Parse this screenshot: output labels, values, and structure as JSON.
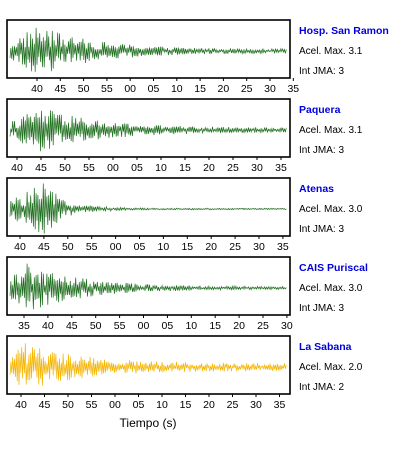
{
  "chart_data": [
    {
      "type": "line",
      "station": "Hosp. San Ramon",
      "lines": [
        "Acel. Max. 3.1",
        "Int JMA: 3"
      ],
      "color": "#1e6e1e",
      "ticks": [
        "40",
        "45",
        "50",
        "55",
        "00",
        "05",
        "10",
        "15",
        "20",
        "25",
        "30",
        "35"
      ],
      "amplitude_envelope": {
        "peak_time": "42",
        "peak_relative": 1.0,
        "decay": "slow",
        "tail_relative": 0.08
      }
    },
    {
      "type": "line",
      "station": "Paquera",
      "lines": [
        "Acel. Max. 3.1",
        "Int JMA: 3"
      ],
      "color": "#1e6e1e",
      "ticks": [
        "40",
        "45",
        "50",
        "55",
        "00",
        "05",
        "10",
        "15",
        "20",
        "25",
        "30",
        "35"
      ],
      "amplitude_envelope": {
        "peak_time": "45",
        "peak_relative": 0.9,
        "decay": "slow",
        "tail_relative": 0.1
      }
    },
    {
      "type": "line",
      "station": "Atenas",
      "lines": [
        "Acel. Max. 3.0",
        "Int JMA: 3"
      ],
      "color": "#1e6e1e",
      "ticks": [
        "40",
        "45",
        "50",
        "55",
        "00",
        "05",
        "10",
        "15",
        "20",
        "25",
        "30",
        "35"
      ],
      "amplitude_envelope": {
        "peak_time": "45",
        "peak_relative": 1.0,
        "decay": "fast",
        "tail_relative": 0.03
      }
    },
    {
      "type": "line",
      "station": "CAIS Puriscal",
      "lines": [
        "Acel. Max. 3.0",
        "Int JMA: 3"
      ],
      "color": "#1e6e1e",
      "ticks": [
        "35",
        "40",
        "45",
        "50",
        "55",
        "00",
        "05",
        "10",
        "15",
        "20",
        "25",
        "30"
      ],
      "amplitude_envelope": {
        "peak_time": "37",
        "peak_relative": 1.0,
        "decay": "slow",
        "tail_relative": 0.05
      }
    },
    {
      "type": "line",
      "station": "La Sabana",
      "lines": [
        "Acel. Max. 2.0",
        "Int JMA: 2"
      ],
      "color": "#f5b400",
      "ticks": [
        "40",
        "45",
        "50",
        "55",
        "00",
        "05",
        "10",
        "15",
        "20",
        "25",
        "30",
        "35"
      ],
      "amplitude_envelope": {
        "peak_time": "44",
        "peak_relative": 1.0,
        "decay": "slow",
        "tail_relative": 0.15
      }
    }
  ],
  "xlabel": "Tiempo (s)",
  "label_color": "#0000dd"
}
